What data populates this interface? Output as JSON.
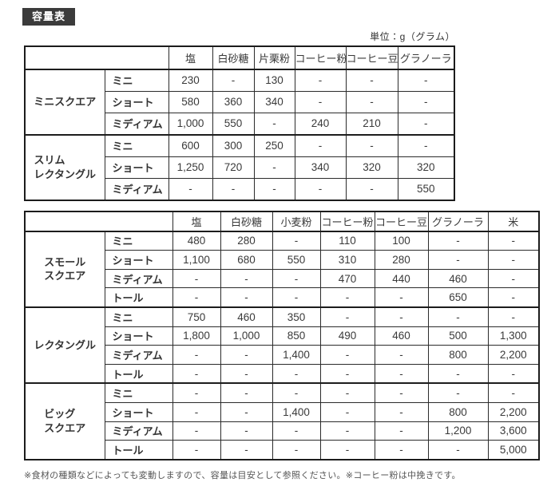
{
  "page": {
    "title_badge": "容量表",
    "unit_label": "単位：g（グラム）",
    "footnote": "※食材の種類などによっても変動しますので、容量は目安として参照ください。※コーヒー粉は中挽きです。"
  },
  "colors": {
    "badge_bg": "#3b3b3b",
    "badge_text": "#ffffff",
    "table_border": "#1c1c1c",
    "cell_border": "#2b2b2b",
    "text": "#333333"
  },
  "tables": [
    {
      "name": "capacity-table-mini-slim",
      "columns": [
        "塩",
        "白砂糖",
        "片栗粉",
        "コーヒー粉",
        "コーヒー豆",
        "グラノーラ"
      ],
      "groups": [
        {
          "label": "ミニスクエア",
          "rows": [
            {
              "size": "ミニ",
              "values": [
                "230",
                "-",
                "130",
                "-",
                "-",
                "-"
              ]
            },
            {
              "size": "ショート",
              "values": [
                "580",
                "360",
                "340",
                "-",
                "-",
                "-"
              ]
            },
            {
              "size": "ミディアム",
              "values": [
                "1,000",
                "550",
                "-",
                "240",
                "210",
                "-"
              ]
            }
          ]
        },
        {
          "label": "スリム\nレクタングル",
          "rows": [
            {
              "size": "ミニ",
              "values": [
                "600",
                "300",
                "250",
                "-",
                "-",
                "-"
              ]
            },
            {
              "size": "ショート",
              "values": [
                "1,250",
                "720",
                "-",
                "340",
                "320",
                "320"
              ]
            },
            {
              "size": "ミディアム",
              "values": [
                "-",
                "-",
                "-",
                "-",
                "-",
                "550"
              ]
            }
          ]
        }
      ]
    },
    {
      "name": "capacity-table-small-rect-big",
      "columns": [
        "塩",
        "白砂糖",
        "小麦粉",
        "コーヒー粉",
        "コーヒー豆",
        "グラノーラ",
        "米"
      ],
      "groups": [
        {
          "label": "スモール\nスクエア",
          "rows": [
            {
              "size": "ミニ",
              "values": [
                "480",
                "280",
                "-",
                "110",
                "100",
                "-",
                "-"
              ]
            },
            {
              "size": "ショート",
              "values": [
                "1,100",
                "680",
                "550",
                "310",
                "280",
                "-",
                "-"
              ]
            },
            {
              "size": "ミディアム",
              "values": [
                "-",
                "-",
                "-",
                "470",
                "440",
                "460",
                "-"
              ]
            },
            {
              "size": "トール",
              "values": [
                "-",
                "-",
                "-",
                "-",
                "-",
                "650",
                "-"
              ]
            }
          ]
        },
        {
          "label": "レクタングル",
          "rows": [
            {
              "size": "ミニ",
              "values": [
                "750",
                "460",
                "350",
                "-",
                "-",
                "-",
                "-"
              ]
            },
            {
              "size": "ショート",
              "values": [
                "1,800",
                "1,000",
                "850",
                "490",
                "460",
                "500",
                "1,300"
              ]
            },
            {
              "size": "ミディアム",
              "values": [
                "-",
                "-",
                "1,400",
                "-",
                "-",
                "800",
                "2,200"
              ]
            },
            {
              "size": "トール",
              "values": [
                "-",
                "-",
                "-",
                "-",
                "-",
                "-",
                "-"
              ]
            }
          ]
        },
        {
          "label": "ビッグ\nスクエア",
          "rows": [
            {
              "size": "ミニ",
              "values": [
                "-",
                "-",
                "-",
                "-",
                "-",
                "-",
                "-"
              ]
            },
            {
              "size": "ショート",
              "values": [
                "-",
                "-",
                "1,400",
                "-",
                "-",
                "800",
                "2,200"
              ]
            },
            {
              "size": "ミディアム",
              "values": [
                "-",
                "-",
                "-",
                "-",
                "-",
                "1,200",
                "3,600"
              ]
            },
            {
              "size": "トール",
              "values": [
                "-",
                "-",
                "-",
                "-",
                "-",
                "-",
                "5,000"
              ]
            }
          ]
        }
      ]
    }
  ]
}
